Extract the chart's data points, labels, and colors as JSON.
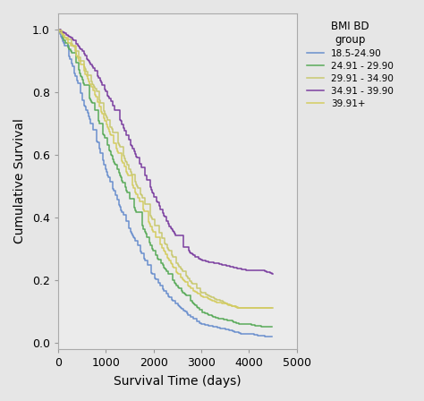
{
  "xlabel": "Survival Time (days)",
  "ylabel": "Cumulative Survival",
  "xlim": [
    0,
    5000
  ],
  "ylim": [
    -0.02,
    1.05
  ],
  "xticks": [
    0,
    1000,
    2000,
    3000,
    4000,
    5000
  ],
  "yticks": [
    0.0,
    0.2,
    0.4,
    0.6,
    0.8,
    1.0
  ],
  "legend_title": "BMI BD\ngroup",
  "background_color": "#e6e6e6",
  "plot_bg_color": "#ebebeb",
  "groups": [
    {
      "label": "18.5-24.90",
      "color": "#6a8fcd",
      "key_times": [
        0,
        100,
        300,
        500,
        800,
        1000,
        1300,
        1500,
        1800,
        2000,
        2300,
        2500,
        2800,
        3000,
        3300,
        3600,
        3800,
        4000,
        4300,
        4500
      ],
      "key_surv": [
        1.0,
        0.96,
        0.88,
        0.78,
        0.65,
        0.55,
        0.43,
        0.36,
        0.27,
        0.21,
        0.15,
        0.12,
        0.08,
        0.06,
        0.05,
        0.04,
        0.03,
        0.03,
        0.02,
        0.02
      ]
    },
    {
      "label": "24.91 - 29.90",
      "color": "#5aaa5a",
      "key_times": [
        0,
        100,
        300,
        500,
        800,
        1000,
        1300,
        1500,
        1800,
        2000,
        2300,
        2500,
        2800,
        3000,
        3300,
        3600,
        3800,
        4000,
        4300,
        4500
      ],
      "key_surv": [
        1.0,
        0.97,
        0.92,
        0.84,
        0.73,
        0.64,
        0.53,
        0.46,
        0.36,
        0.29,
        0.22,
        0.18,
        0.13,
        0.1,
        0.08,
        0.07,
        0.06,
        0.06,
        0.05,
        0.05
      ]
    },
    {
      "label": "29.91 - 34.90",
      "color": "#c8c870",
      "key_times": [
        0,
        100,
        300,
        500,
        800,
        1000,
        1300,
        1500,
        1800,
        2000,
        2300,
        2500,
        2800,
        3000,
        3300,
        3600,
        3800,
        4000,
        4300,
        4500
      ],
      "key_surv": [
        1.0,
        0.98,
        0.95,
        0.89,
        0.8,
        0.72,
        0.62,
        0.55,
        0.45,
        0.38,
        0.3,
        0.25,
        0.19,
        0.16,
        0.14,
        0.12,
        0.11,
        0.11,
        0.11,
        0.11
      ]
    },
    {
      "label": "34.91 - 39.90",
      "color": "#7b3fa0",
      "key_times": [
        0,
        100,
        300,
        500,
        800,
        1000,
        1300,
        1500,
        1800,
        2000,
        2300,
        2600,
        2900,
        3100,
        3400,
        3700,
        4000,
        4300,
        4500
      ],
      "key_surv": [
        1.0,
        0.99,
        0.97,
        0.93,
        0.86,
        0.8,
        0.71,
        0.64,
        0.54,
        0.47,
        0.38,
        0.31,
        0.27,
        0.26,
        0.25,
        0.24,
        0.23,
        0.23,
        0.22
      ]
    },
    {
      "label": "39.91+",
      "color": "#d4cc60",
      "key_times": [
        0,
        100,
        300,
        500,
        800,
        1000,
        1300,
        1500,
        1800,
        2000,
        2300,
        2500,
        2800,
        3000,
        3300,
        3600,
        3800,
        4000,
        4300,
        4500
      ],
      "key_surv": [
        1.0,
        0.98,
        0.94,
        0.88,
        0.78,
        0.7,
        0.59,
        0.52,
        0.42,
        0.35,
        0.27,
        0.22,
        0.17,
        0.15,
        0.13,
        0.12,
        0.11,
        0.11,
        0.11,
        0.11
      ]
    }
  ]
}
